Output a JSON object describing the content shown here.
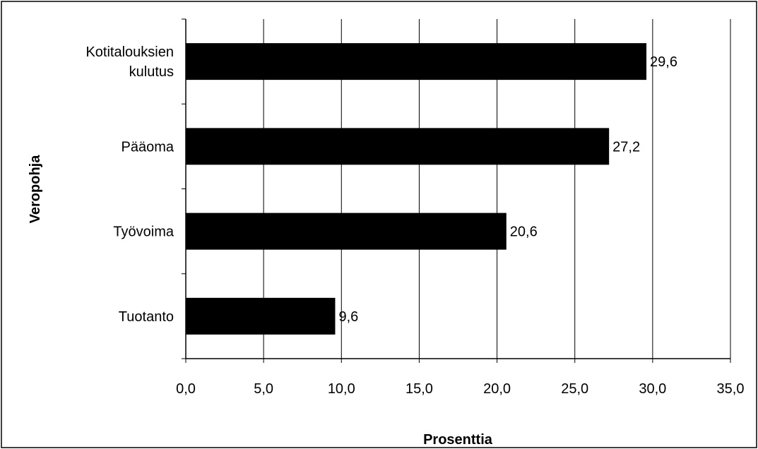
{
  "chart_data": {
    "type": "bar",
    "orientation": "horizontal",
    "categories": [
      [
        "Kotitalouksien",
        "kulutus"
      ],
      [
        "Pääoma"
      ],
      [
        "Työvoima"
      ],
      [
        "Tuotanto"
      ]
    ],
    "values": [
      29.6,
      27.2,
      20.6,
      9.6
    ],
    "data_labels": [
      "29,6",
      "27,2",
      "20,6",
      "9,6"
    ],
    "xlabel": "Prosenttia",
    "ylabel": "Veropohja",
    "xlim": [
      0,
      35
    ],
    "xticks": [
      0,
      5,
      10,
      15,
      20,
      25,
      30,
      35
    ],
    "xtick_labels": [
      "0,0",
      "5,0",
      "10,0",
      "15,0",
      "20,0",
      "25,0",
      "30,0",
      "35,0"
    ],
    "grid": "vertical",
    "bar_color": "#000000"
  }
}
